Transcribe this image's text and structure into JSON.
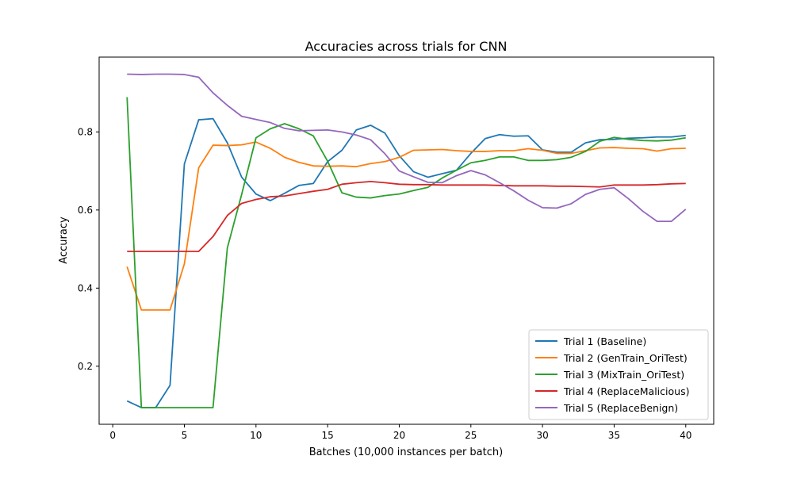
{
  "chart_data": {
    "type": "line",
    "title": "Accuracies across trials for CNN",
    "xlabel": "Batches (10,000 instances per batch)",
    "ylabel": "Accuracy",
    "xlim": [
      -0.95,
      41.95
    ],
    "ylim": [
      0.0513,
      0.9916
    ],
    "xticks": [
      0,
      5,
      10,
      15,
      20,
      25,
      30,
      35,
      40
    ],
    "yticks": [
      0.2,
      0.4,
      0.6,
      0.8
    ],
    "ytick_labels": [
      "0.2",
      "0.4",
      "0.6",
      "0.8"
    ],
    "grid": false,
    "legend_position": "lower-right",
    "x": [
      1,
      2,
      3,
      4,
      5,
      6,
      7,
      8,
      9,
      10,
      11,
      12,
      13,
      14,
      15,
      16,
      17,
      18,
      19,
      20,
      21,
      22,
      23,
      24,
      25,
      26,
      27,
      28,
      29,
      30,
      31,
      32,
      33,
      34,
      35,
      36,
      37,
      38,
      39,
      40
    ],
    "series": [
      {
        "name": "Trial 1 (Baseline)",
        "color": "#1f77b4",
        "values": [
          0.111,
          0.094,
          0.094,
          0.151,
          0.718,
          0.831,
          0.834,
          0.772,
          0.684,
          0.641,
          0.624,
          0.643,
          0.663,
          0.668,
          0.724,
          0.753,
          0.805,
          0.817,
          0.797,
          0.739,
          0.698,
          0.684,
          0.693,
          0.702,
          0.745,
          0.783,
          0.793,
          0.789,
          0.79,
          0.754,
          0.748,
          0.748,
          0.772,
          0.78,
          0.781,
          0.784,
          0.785,
          0.787,
          0.787,
          0.791
        ]
      },
      {
        "name": "Trial 2 (GenTrain_OriTest)",
        "color": "#ff7f0e",
        "values": [
          0.455,
          0.344,
          0.344,
          0.344,
          0.462,
          0.708,
          0.766,
          0.765,
          0.767,
          0.774,
          0.758,
          0.735,
          0.722,
          0.713,
          0.712,
          0.713,
          0.711,
          0.719,
          0.724,
          0.735,
          0.753,
          0.754,
          0.755,
          0.752,
          0.75,
          0.75,
          0.752,
          0.752,
          0.757,
          0.753,
          0.745,
          0.745,
          0.752,
          0.759,
          0.76,
          0.758,
          0.757,
          0.751,
          0.757,
          0.758
        ]
      },
      {
        "name": "Trial 3 (MixTrain_OriTest)",
        "color": "#2ca02c",
        "values": [
          0.889,
          0.094,
          0.094,
          0.094,
          0.094,
          0.094,
          0.094,
          0.503,
          0.64,
          0.785,
          0.808,
          0.821,
          0.808,
          0.79,
          0.725,
          0.644,
          0.633,
          0.631,
          0.637,
          0.641,
          0.65,
          0.658,
          0.682,
          0.702,
          0.721,
          0.727,
          0.736,
          0.736,
          0.727,
          0.727,
          0.729,
          0.735,
          0.75,
          0.776,
          0.786,
          0.781,
          0.778,
          0.777,
          0.779,
          0.785
        ]
      },
      {
        "name": "Trial 4 (ReplaceMalicious)",
        "color": "#d62728",
        "values": [
          0.494,
          0.494,
          0.494,
          0.494,
          0.494,
          0.494,
          0.532,
          0.586,
          0.617,
          0.627,
          0.634,
          0.636,
          0.642,
          0.648,
          0.653,
          0.666,
          0.67,
          0.673,
          0.67,
          0.666,
          0.665,
          0.665,
          0.664,
          0.664,
          0.664,
          0.664,
          0.663,
          0.662,
          0.662,
          0.662,
          0.661,
          0.661,
          0.66,
          0.659,
          0.664,
          0.664,
          0.664,
          0.665,
          0.667,
          0.668
        ]
      },
      {
        "name": "Trial 5 (ReplaceBenign)",
        "color": "#9467bd",
        "values": [
          0.948,
          0.947,
          0.948,
          0.948,
          0.947,
          0.94,
          0.9,
          0.868,
          0.84,
          0.832,
          0.824,
          0.809,
          0.803,
          0.804,
          0.805,
          0.8,
          0.792,
          0.78,
          0.744,
          0.7,
          0.685,
          0.671,
          0.67,
          0.688,
          0.701,
          0.69,
          0.67,
          0.649,
          0.625,
          0.606,
          0.605,
          0.616,
          0.64,
          0.653,
          0.657,
          0.629,
          0.597,
          0.571,
          0.571,
          0.602
        ]
      }
    ]
  }
}
